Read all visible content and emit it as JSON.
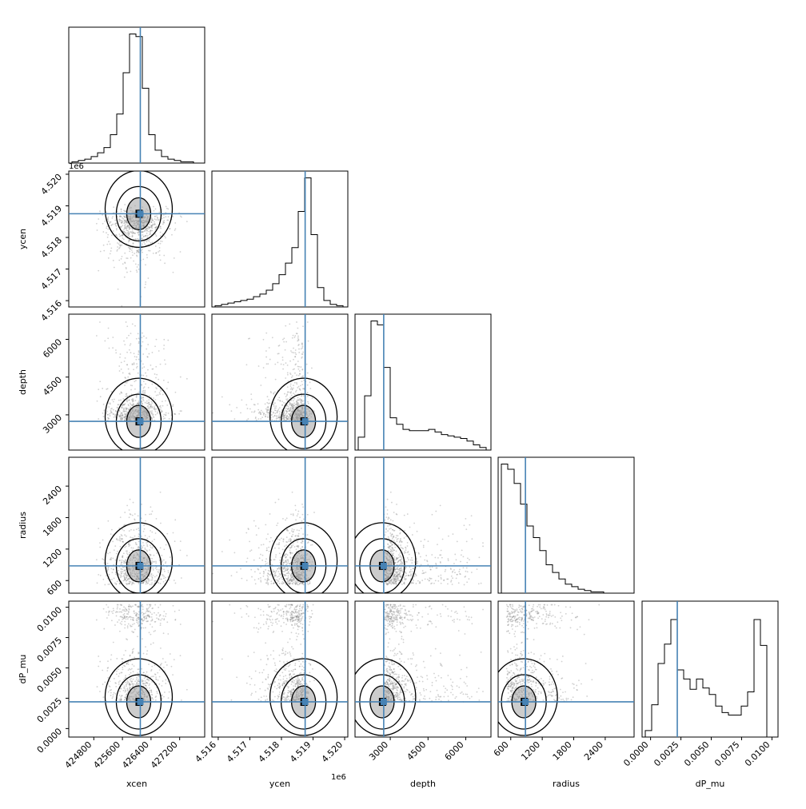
{
  "chart_data": {
    "type": "corner",
    "parameters": [
      "xcen",
      "ycen",
      "depth",
      "radius",
      "dP_mu"
    ],
    "truths": {
      "xcen": 426100,
      "ycen": 4518750,
      "depth": 2740,
      "radius": 880,
      "dP_mu": 0.0022
    },
    "ranges": {
      "xcen": [
        424100,
        427900
      ],
      "ycen": [
        4515800,
        4520100
      ],
      "depth": [
        1600,
        7000
      ],
      "radius": [
        360,
        2950
      ],
      "dP_mu": [
        -0.0007,
        0.0105
      ]
    },
    "ticks": {
      "xcen": [
        424800,
        425600,
        426400,
        427200
      ],
      "ycen": [
        4516000,
        4517000,
        4518000,
        4519000,
        4520000
      ],
      "depth": [
        3000,
        4500,
        6000
      ],
      "radius": [
        600,
        1200,
        1800,
        2400
      ],
      "dP_mu": [
        0.0,
        0.0025,
        0.005,
        0.0075,
        0.01
      ]
    },
    "tick_labels": {
      "xcen": [
        "424800",
        "425600",
        "426400",
        "427200"
      ],
      "ycen_bottom": [
        "4.516",
        "4.517",
        "4.518",
        "4.519",
        "4.520"
      ],
      "ycen_left": [
        "4.516",
        "4.517",
        "4.518",
        "4.519",
        "4.520"
      ],
      "depth": [
        "3000",
        "4500",
        "6000"
      ],
      "radius": [
        "600",
        "1200",
        "1800",
        "2400"
      ],
      "dP_mu": [
        "0.0000",
        "0.0025",
        "0.0050",
        "0.0075",
        "0.0100"
      ]
    },
    "offset_label": "1e6",
    "axis_labels": {
      "x": [
        "xcen",
        "ycen",
        "depth",
        "radius",
        "dP_mu"
      ],
      "y": [
        "ycen",
        "depth",
        "radius",
        "dP_mu"
      ]
    },
    "histograms": {
      "xcen": {
        "bins": 20,
        "counts": [
          1,
          2,
          3,
          5,
          8,
          12,
          22,
          38,
          70,
          100,
          98,
          58,
          22,
          10,
          5,
          3,
          2,
          1,
          1,
          0
        ]
      },
      "ycen": {
        "bins": 20,
        "counts": [
          1,
          2,
          3,
          4,
          5,
          6,
          8,
          10,
          13,
          18,
          25,
          34,
          46,
          74,
          100,
          56,
          15,
          5,
          2,
          1
        ]
      },
      "depth": {
        "bins": 20,
        "counts": [
          10,
          42,
          100,
          97,
          64,
          25,
          20,
          16,
          15,
          15,
          15,
          16,
          14,
          12,
          11,
          10,
          9,
          7,
          4,
          2
        ]
      },
      "radius": {
        "bins": 20,
        "counts": [
          100,
          96,
          85,
          69,
          52,
          43,
          33,
          22,
          16,
          11,
          7,
          5,
          3,
          2,
          1,
          1,
          0,
          0,
          0,
          0
        ]
      },
      "dP_mu": {
        "bins": 20,
        "counts": [
          5,
          25,
          57,
          72,
          91,
          52,
          45,
          37,
          45,
          38,
          33,
          24,
          19,
          17,
          17,
          24,
          35,
          91,
          71,
          0
        ]
      }
    }
  }
}
